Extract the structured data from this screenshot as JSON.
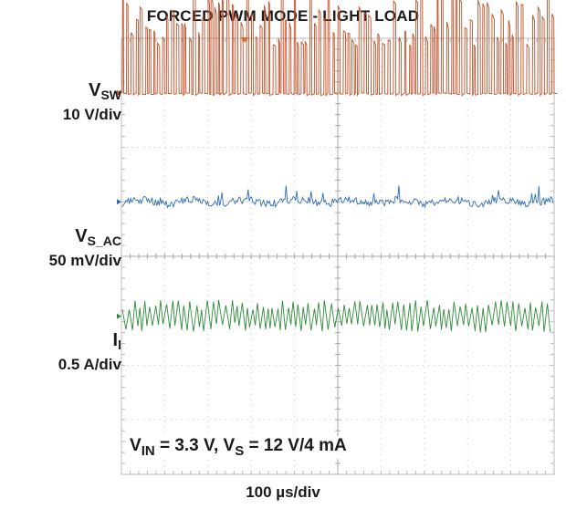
{
  "chart_data": {
    "type": "line",
    "title": "FORCED PWM MODE - LIGHT LOAD",
    "xlabel": "100 µs/div",
    "grid": true,
    "divisions": {
      "x": 10,
      "y": 8
    },
    "series": [
      {
        "name": "VSW",
        "symbol": "V",
        "subscript": "SW",
        "scale": "10 V/div",
        "color": "#c0502a",
        "ground_div": 3.0,
        "amplitude_div": 1.9,
        "style": "switching"
      },
      {
        "name": "VS_AC",
        "symbol": "V",
        "subscript": "S_AC",
        "scale": "50 mV/div",
        "color": "#2e6db4",
        "ground_div": 1.0,
        "amplitude_div": 0.15,
        "style": "ripple"
      },
      {
        "name": "IL",
        "symbol": "I",
        "subscript": "l",
        "scale": "0.5 A/div",
        "color": "#2e8b3a",
        "ground_div": -1.1,
        "amplitude_div": 0.3,
        "style": "triangle"
      }
    ],
    "conditions": {
      "text_parts": [
        {
          "t": "V",
          "sub": "IN"
        },
        {
          "t": " = 3.3 V, V",
          "sub": "S"
        },
        {
          "t": " = 12 V/4 mA",
          "sub": ""
        }
      ]
    }
  }
}
